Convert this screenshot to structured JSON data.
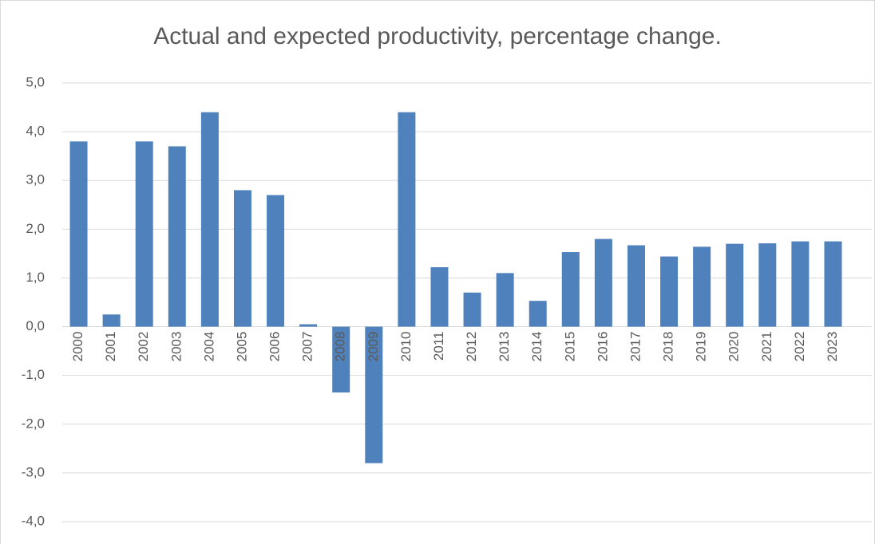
{
  "chart_data": {
    "type": "bar",
    "title": "Actual and expected productivity, percentage change.",
    "categories": [
      "2000",
      "2001",
      "2002",
      "2003",
      "2004",
      "2005",
      "2006",
      "2007",
      "2008",
      "2009",
      "2010",
      "2011",
      "2012",
      "2013",
      "2014",
      "2015",
      "2016",
      "2017",
      "2018",
      "2019",
      "2020",
      "2021",
      "2022",
      "2023"
    ],
    "values": [
      3.8,
      0.25,
      3.8,
      3.7,
      4.4,
      2.8,
      2.7,
      0.05,
      -1.35,
      -2.8,
      4.4,
      1.22,
      0.7,
      1.1,
      0.53,
      1.53,
      1.8,
      1.67,
      1.44,
      1.64,
      1.7,
      1.71,
      1.75,
      1.75
    ],
    "color": "#4f81bd",
    "ylim": [
      -4,
      5
    ],
    "yticks": [
      {
        "value": -4,
        "label": "-4,0"
      },
      {
        "value": -3,
        "label": "-3,0"
      },
      {
        "value": -2,
        "label": "-2,0"
      },
      {
        "value": -1,
        "label": "-1,0"
      },
      {
        "value": 0,
        "label": "0,0"
      },
      {
        "value": 1,
        "label": "1,0"
      },
      {
        "value": 2,
        "label": "2,0"
      },
      {
        "value": 3,
        "label": "3,0"
      },
      {
        "value": 4,
        "label": "4,0"
      },
      {
        "value": 5,
        "label": "5,0"
      }
    ],
    "grid": true
  }
}
